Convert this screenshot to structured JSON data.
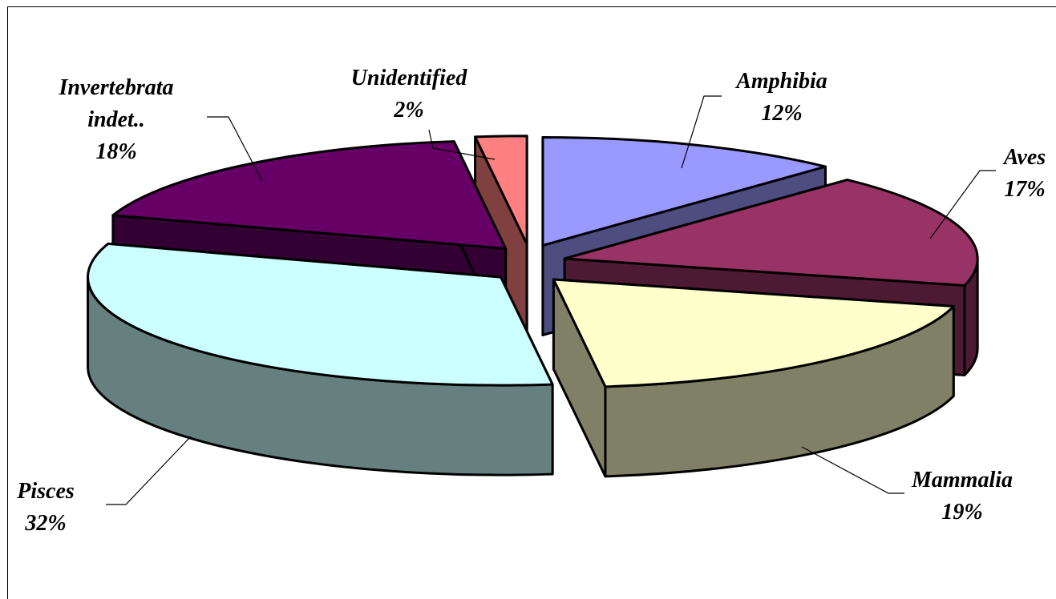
{
  "chart_data": {
    "type": "pie",
    "style": "3d-exploded",
    "title": "",
    "slices": [
      {
        "name": "Amphibia",
        "value": 12,
        "label": "12%",
        "color": "#9999ff",
        "side_color": "#4d4d80"
      },
      {
        "name": "Aves",
        "value": 17,
        "label": "17%",
        "color": "#993366",
        "side_color": "#4d1a33"
      },
      {
        "name": "Mammalia",
        "value": 19,
        "label": "19%",
        "color": "#ffffcc",
        "side_color": "#808066"
      },
      {
        "name": "Pisces",
        "value": 32,
        "label": "32%",
        "color": "#ccffff",
        "side_color": "#668080"
      },
      {
        "name": "Invertebrata indet..",
        "value": 18,
        "label": "18%",
        "color": "#660066",
        "side_color": "#330033"
      },
      {
        "name": "Unidentified",
        "value": 2,
        "label": "2%",
        "color": "#ff8080",
        "side_color": "#804040"
      }
    ]
  }
}
